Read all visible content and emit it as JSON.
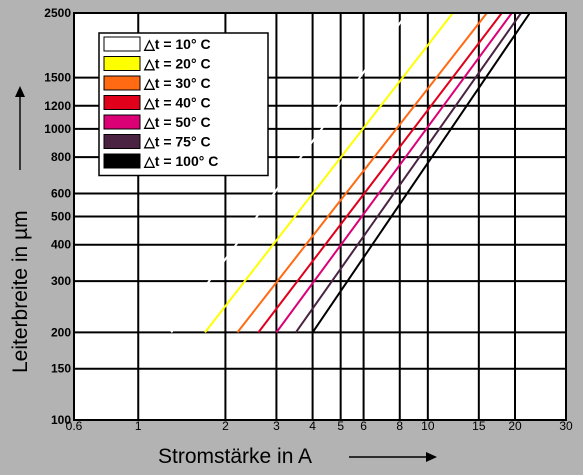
{
  "chart_data": {
    "type": "line",
    "xlabel": "Stromstärke in A",
    "ylabel": "Leiterbreite in µm",
    "x_scale": "log",
    "y_scale": "log",
    "xlim": [
      0.6,
      30
    ],
    "ylim": [
      100,
      2500
    ],
    "grid": true,
    "legend_placement": "top-left",
    "x_ticks": [
      0.6,
      1,
      2,
      3,
      4,
      5,
      6,
      8,
      10,
      15,
      20,
      30
    ],
    "x_tick_labels": [
      "0.6",
      "1",
      "2",
      "3",
      "4",
      "5",
      "6",
      "8",
      "10",
      "15",
      "20",
      "30"
    ],
    "y_ticks": [
      100,
      150,
      200,
      300,
      400,
      500,
      600,
      800,
      1000,
      1200,
      1500,
      2500
    ],
    "y_tick_labels": [
      "100",
      "150",
      "200",
      "300",
      "400",
      "500",
      "600",
      "800",
      "1000",
      "1200",
      "1500",
      "2500"
    ],
    "series": [
      {
        "name": "△t =   10° C",
        "color": "#ffffff",
        "x": [
          1.3,
          8.5
        ],
        "y": [
          200,
          2500
        ]
      },
      {
        "name": "△t =   20° C",
        "color": "#ffff00",
        "x": [
          1.7,
          12.2
        ],
        "y": [
          200,
          2500
        ]
      },
      {
        "name": "△t =   30° C",
        "color": "#ff6a13",
        "x": [
          2.2,
          16.0
        ],
        "y": [
          200,
          2500
        ]
      },
      {
        "name": "△t =   40° C",
        "color": "#e0001b",
        "x": [
          2.6,
          18.0
        ],
        "y": [
          200,
          2500
        ]
      },
      {
        "name": "△t =   50° C",
        "color": "#dc0077",
        "x": [
          3.0,
          19.5
        ],
        "y": [
          200,
          2500
        ]
      },
      {
        "name": "△t =   75° C",
        "color": "#4a2343",
        "x": [
          3.5,
          21.0
        ],
        "y": [
          200,
          2500
        ]
      },
      {
        "name": "△t = 100° C",
        "color": "#000000",
        "x": [
          4.0,
          22.5
        ],
        "y": [
          200,
          2500
        ]
      }
    ]
  }
}
